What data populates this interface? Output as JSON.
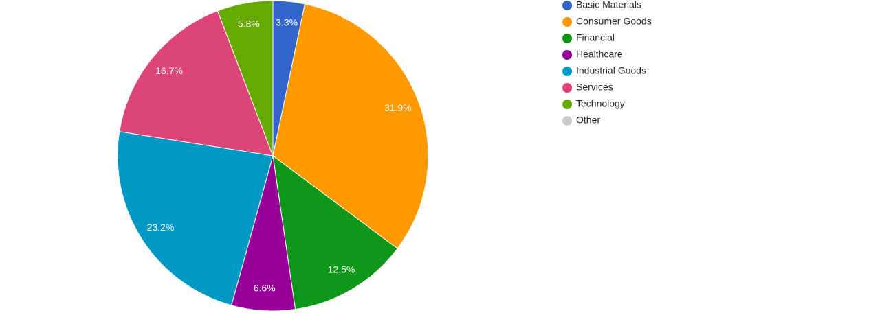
{
  "chart_data": {
    "type": "pie",
    "categories": [
      "Basic Materials",
      "Consumer Goods",
      "Financial",
      "Healthcare",
      "Industrial Goods",
      "Services",
      "Technology",
      "Other"
    ],
    "values": [
      3.3,
      31.9,
      12.5,
      6.6,
      23.2,
      16.7,
      5.8,
      0
    ],
    "value_labels": [
      "3.3%",
      "31.9%",
      "12.5%",
      "6.6%",
      "23.2%",
      "16.7%",
      "5.8%",
      null
    ],
    "colors": [
      "#3366cc",
      "#ff9900",
      "#109618",
      "#990099",
      "#0099c6",
      "#dd4477",
      "#66aa00",
      "#cccccc"
    ],
    "legend": "right"
  }
}
